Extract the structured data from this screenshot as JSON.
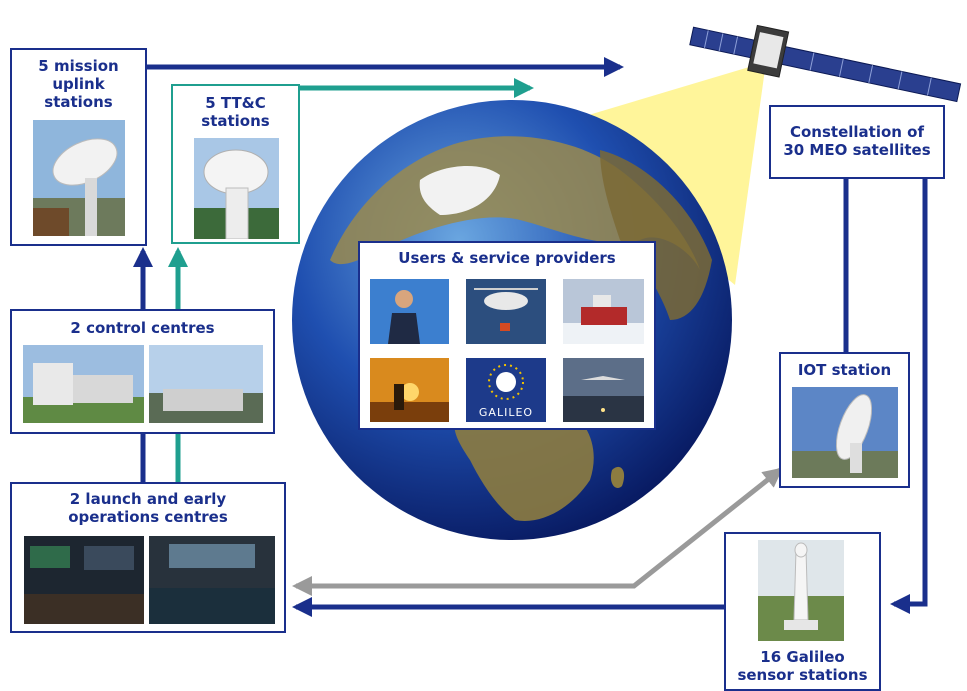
{
  "uplink": {
    "title": "5 mission\nuplink\nstations"
  },
  "ttc": {
    "title": "5 TT&C\nstations"
  },
  "control": {
    "title": "2 control centres"
  },
  "leop": {
    "title": "2 launch and early\noperations centres"
  },
  "constellation": {
    "title": "Constellation of\n30 MEO satellites"
  },
  "iot": {
    "title": "IOT station"
  },
  "sensor": {
    "title": "16 Galileo\nsensor stations"
  },
  "users": {
    "title": "Users & service providers",
    "galileo_logo": "GALILEO"
  },
  "colors": {
    "navy": "#1a2f8c",
    "teal": "#1f9f8f",
    "grey": "#9a9a9a",
    "beam": "#fff59a"
  }
}
